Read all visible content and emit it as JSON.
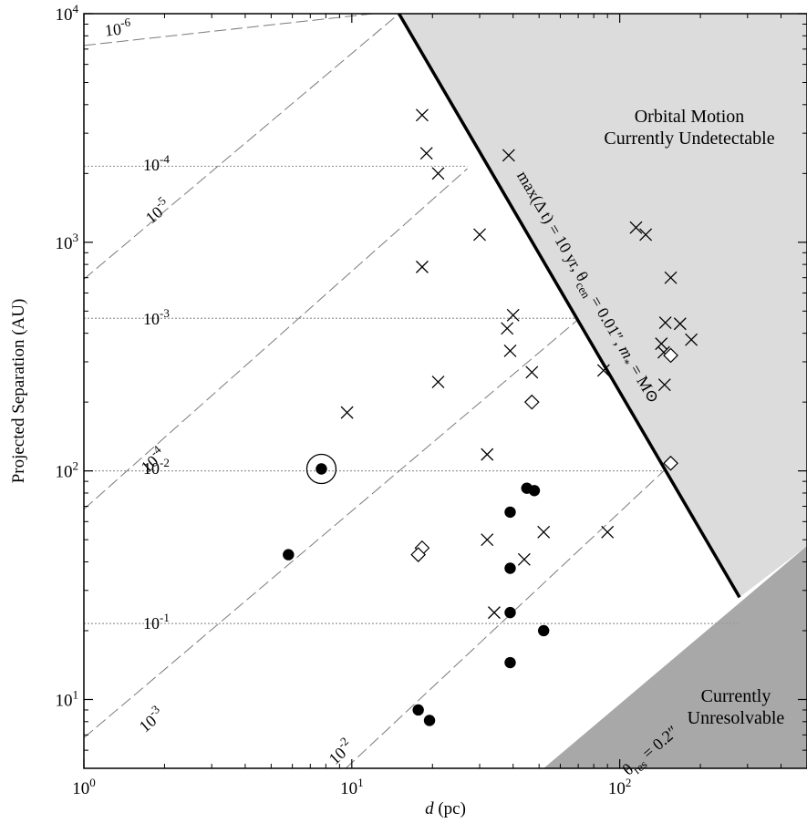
{
  "chart_data": {
    "type": "scatter",
    "xscale": "log",
    "yscale": "log",
    "xlim": [
      1,
      500
    ],
    "ylim": [
      5,
      10000
    ],
    "xlabel": {
      "italic": "d",
      "rest": " (pc)"
    },
    "ylabel": "Projected Separation (AU)",
    "x_ticks": [
      {
        "value": 1,
        "base": "10",
        "exp": "0"
      },
      {
        "value": 10,
        "base": "10",
        "exp": "1"
      },
      {
        "value": 100,
        "base": "10",
        "exp": "2"
      }
    ],
    "y_ticks": [
      {
        "value": 10,
        "base": "10",
        "exp": "1"
      },
      {
        "value": 100,
        "base": "10",
        "exp": "2"
      },
      {
        "value": 1000,
        "base": "10",
        "exp": "3"
      },
      {
        "value": 10000,
        "base": "10",
        "exp": "4"
      }
    ],
    "regions": {
      "undetectable": {
        "lines": [
          "Orbital Motion",
          "Currently Undetectable"
        ],
        "fill": "#dcdcdc"
      },
      "unresolvable": {
        "lines": [
          "Currently",
          "Unresolvable"
        ],
        "fill": "#a8a8a8"
      }
    },
    "boundary_line": {
      "points": [
        [
          15,
          10000
        ],
        [
          280,
          28
        ]
      ],
      "label_parts": [
        {
          "t": "max(Δ t) = 10 yr, "
        },
        {
          "t": "θ"
        },
        {
          "t": "cen",
          "sub": true
        },
        {
          "t": " = 0.01″, "
        },
        {
          "t": "m",
          "italic": true
        },
        {
          "t": "*",
          "sub": true
        },
        {
          "t": " = M"
        },
        {
          "t": "⊙"
        }
      ]
    },
    "resolution_line": {
      "points": [
        [
          52,
          5
        ],
        [
          500,
          47
        ]
      ],
      "label_parts": [
        {
          "t": "θ"
        },
        {
          "t": "res",
          "sub": true
        },
        {
          "t": " = 0.2″"
        }
      ]
    },
    "diagonal_lines": [
      {
        "label_base": "10",
        "label_exp": "-6",
        "points": [
          [
            1,
            7260
          ],
          [
            12,
            10000
          ]
        ]
      },
      {
        "label_base": "10",
        "label_exp": "-5",
        "points": [
          [
            1,
            690
          ],
          [
            15,
            10000
          ]
        ]
      },
      {
        "label_base": "10",
        "label_exp": "-4",
        "points": [
          [
            1,
            68
          ],
          [
            27,
            2100
          ]
        ]
      },
      {
        "label_base": "10",
        "label_exp": "-3",
        "points": [
          [
            1,
            6.8
          ],
          [
            70,
            460
          ]
        ]
      },
      {
        "label_base": "10",
        "label_exp": "-2",
        "points": [
          [
            9.5,
            5
          ],
          [
            146,
            100
          ]
        ]
      }
    ],
    "horizontal_lines": [
      {
        "y": 2150,
        "x_end": 27,
        "label_base": "10",
        "label_exp": "-4"
      },
      {
        "y": 465,
        "x_end": 70,
        "label_base": "10",
        "label_exp": "-3"
      },
      {
        "y": 100,
        "x_end": 146,
        "label_base": "10",
        "label_exp": "-2"
      },
      {
        "y": 21.5,
        "x_end": 280,
        "label_base": "10",
        "label_exp": "-1"
      }
    ],
    "series": [
      {
        "marker": "x",
        "points": [
          [
            18.3,
            3600
          ],
          [
            19,
            2450
          ],
          [
            21,
            2000
          ],
          [
            38.5,
            2400
          ],
          [
            30,
            1080
          ],
          [
            18.3,
            780
          ],
          [
            40,
            480
          ],
          [
            38,
            420
          ],
          [
            39,
            335
          ],
          [
            21,
            245
          ],
          [
            47,
            270
          ],
          [
            9.6,
            180
          ],
          [
            32,
            118
          ],
          [
            32,
            50
          ],
          [
            52,
            54
          ],
          [
            44,
            41
          ],
          [
            34,
            24
          ],
          [
            90,
            54
          ],
          [
            87,
            275
          ],
          [
            115,
            1160
          ],
          [
            125,
            1080
          ],
          [
            155,
            700
          ],
          [
            148,
            445
          ],
          [
            168,
            440
          ],
          [
            185,
            375
          ],
          [
            143,
            360
          ],
          [
            146,
            330
          ],
          [
            147,
            238
          ]
        ]
      },
      {
        "marker": "diamond",
        "points": [
          [
            47,
            200
          ],
          [
            18.3,
            46
          ],
          [
            17.7,
            43
          ],
          [
            155,
            320
          ],
          [
            155,
            108
          ]
        ]
      },
      {
        "marker": "dot",
        "points": [
          [
            7.7,
            102
          ],
          [
            5.8,
            43
          ],
          [
            45,
            84
          ],
          [
            48,
            82
          ],
          [
            39,
            66
          ],
          [
            39,
            37.5
          ],
          [
            39,
            24
          ],
          [
            52,
            20
          ],
          [
            39,
            14.5
          ],
          [
            17.7,
            9
          ],
          [
            19.5,
            8.1
          ]
        ]
      },
      {
        "marker": "ring",
        "points": [
          [
            7.7,
            102
          ]
        ]
      }
    ]
  }
}
